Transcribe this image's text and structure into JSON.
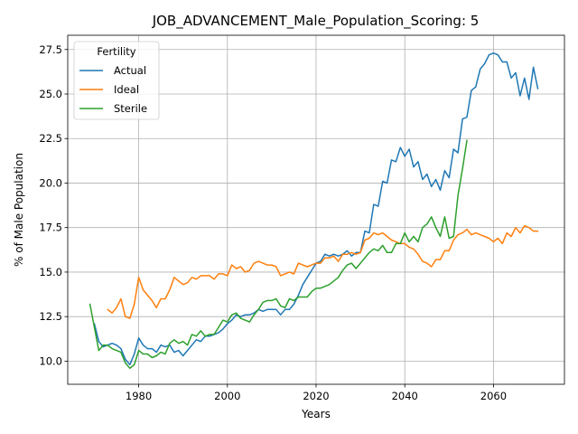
{
  "chart_data": {
    "type": "line",
    "title": "JOB_ADVANCEMENT_Male_Population_Scoring: 5",
    "xlabel": "Years",
    "ylabel": "% of Male Population",
    "xlim": [
      1964,
      2076
    ],
    "ylim": [
      8.7,
      28.3
    ],
    "x_ticks": [
      1980,
      2000,
      2020,
      2040,
      2060
    ],
    "y_ticks": [
      10.0,
      12.5,
      15.0,
      17.5,
      20.0,
      22.5,
      25.0,
      27.5
    ],
    "y_tick_labels": [
      "10.0",
      "12.5",
      "15.0",
      "17.5",
      "20.0",
      "22.5",
      "25.0",
      "27.5"
    ],
    "grid": true,
    "legend": {
      "title": "Fertility",
      "placement": "top-left"
    },
    "series": [
      {
        "name": "Actual",
        "color": "#1f77b4",
        "x": [
          1970,
          1971,
          1972,
          1973,
          1974,
          1975,
          1976,
          1977,
          1978,
          1979,
          1980,
          1981,
          1982,
          1983,
          1984,
          1985,
          1986,
          1987,
          1988,
          1989,
          1990,
          1991,
          1992,
          1993,
          1994,
          1995,
          1996,
          1997,
          1998,
          1999,
          2000,
          2001,
          2002,
          2003,
          2004,
          2005,
          2006,
          2007,
          2008,
          2009,
          2010,
          2011,
          2012,
          2013,
          2014,
          2015,
          2016,
          2017,
          2018,
          2019,
          2020,
          2021,
          2022,
          2023,
          2024,
          2025,
          2026,
          2027,
          2028,
          2029,
          2030,
          2031,
          2032,
          2033,
          2034,
          2035,
          2036,
          2037,
          2038,
          2039,
          2040,
          2041,
          2042,
          2043,
          2044,
          2045,
          2046,
          2047,
          2048,
          2049,
          2050,
          2051,
          2052,
          2053,
          2054,
          2055,
          2056,
          2057,
          2058,
          2059,
          2060,
          2061,
          2062,
          2063,
          2064,
          2065,
          2066,
          2067,
          2068,
          2069,
          2070
        ],
        "values": [
          12.1,
          11.1,
          10.8,
          10.9,
          11.0,
          10.9,
          10.7,
          10.1,
          9.8,
          10.4,
          11.3,
          10.9,
          10.7,
          10.7,
          10.5,
          10.9,
          10.8,
          10.9,
          10.5,
          10.6,
          10.3,
          10.6,
          10.9,
          11.2,
          11.1,
          11.4,
          11.4,
          11.5,
          11.6,
          11.8,
          12.1,
          12.3,
          12.6,
          12.5,
          12.6,
          12.6,
          12.7,
          12.9,
          12.8,
          12.9,
          12.9,
          12.9,
          12.6,
          12.9,
          12.9,
          13.2,
          13.7,
          14.3,
          14.7,
          15.1,
          15.5,
          15.6,
          16.0,
          15.9,
          16.0,
          15.9,
          16.0,
          16.2,
          15.9,
          16.1,
          16.1,
          17.3,
          17.2,
          18.8,
          18.7,
          20.1,
          20.0,
          21.3,
          21.2,
          22.0,
          21.5,
          21.9,
          20.9,
          21.2,
          20.2,
          20.5,
          19.8,
          20.2,
          19.6,
          20.7,
          20.3,
          21.9,
          21.7,
          23.6,
          23.7,
          25.2,
          25.4,
          26.4,
          26.7,
          27.2,
          27.3,
          27.2,
          26.8,
          26.8,
          25.9,
          26.2,
          24.9,
          25.9,
          24.7,
          26.5,
          25.3
        ]
      },
      {
        "name": "Ideal",
        "color": "#ff7f0e",
        "x": [
          1973,
          1974,
          1975,
          1976,
          1977,
          1978,
          1979,
          1980,
          1981,
          1982,
          1983,
          1984,
          1985,
          1986,
          1987,
          1988,
          1989,
          1990,
          1991,
          1992,
          1993,
          1994,
          1995,
          1996,
          1997,
          1998,
          1999,
          2000,
          2001,
          2002,
          2003,
          2004,
          2005,
          2006,
          2007,
          2008,
          2009,
          2010,
          2011,
          2012,
          2013,
          2014,
          2015,
          2016,
          2017,
          2018,
          2019,
          2020,
          2021,
          2022,
          2023,
          2024,
          2025,
          2026,
          2027,
          2028,
          2029,
          2030,
          2031,
          2032,
          2033,
          2034,
          2035,
          2036,
          2037,
          2038,
          2039,
          2040,
          2041,
          2042,
          2043,
          2044,
          2045,
          2046,
          2047,
          2048,
          2049,
          2050,
          2051,
          2052,
          2053,
          2054,
          2055,
          2056,
          2057,
          2058,
          2059,
          2060,
          2061,
          2062,
          2063,
          2064,
          2065,
          2066,
          2067,
          2068,
          2069,
          2070
        ],
        "values": [
          12.9,
          12.7,
          13.0,
          13.5,
          12.5,
          12.4,
          13.2,
          14.7,
          14.0,
          13.7,
          13.4,
          13.0,
          13.5,
          13.5,
          14.0,
          14.7,
          14.5,
          14.3,
          14.4,
          14.7,
          14.6,
          14.8,
          14.8,
          14.8,
          14.6,
          14.9,
          14.9,
          14.8,
          15.4,
          15.2,
          15.3,
          15.0,
          15.1,
          15.5,
          15.6,
          15.5,
          15.4,
          15.4,
          15.3,
          14.8,
          14.9,
          15.0,
          14.9,
          15.5,
          15.4,
          15.3,
          15.4,
          15.5,
          15.5,
          15.8,
          15.8,
          15.9,
          15.6,
          16.0,
          16.0,
          16.1,
          16.0,
          16.1,
          16.8,
          16.9,
          17.2,
          17.1,
          17.2,
          17.0,
          16.8,
          16.7,
          16.6,
          16.6,
          16.4,
          16.3,
          16.0,
          15.6,
          15.5,
          15.3,
          15.7,
          15.7,
          16.2,
          16.2,
          16.8,
          17.1,
          17.2,
          17.4,
          17.1,
          17.2,
          17.1,
          17.0,
          16.9,
          16.7,
          16.9,
          16.6,
          17.2,
          17.0,
          17.5,
          17.2,
          17.6,
          17.5,
          17.3,
          17.3
        ]
      },
      {
        "name": "Sterile",
        "color": "#2ca02c",
        "x": [
          1969,
          1970,
          1971,
          1972,
          1973,
          1974,
          1975,
          1976,
          1977,
          1978,
          1979,
          1980,
          1981,
          1982,
          1983,
          1984,
          1985,
          1986,
          1987,
          1988,
          1989,
          1990,
          1991,
          1992,
          1993,
          1994,
          1995,
          1996,
          1997,
          1998,
          1999,
          2000,
          2001,
          2002,
          2003,
          2004,
          2005,
          2006,
          2007,
          2008,
          2009,
          2010,
          2011,
          2012,
          2013,
          2014,
          2015,
          2016,
          2017,
          2018,
          2019,
          2020,
          2021,
          2022,
          2023,
          2024,
          2025,
          2026,
          2027,
          2028,
          2029,
          2030,
          2031,
          2032,
          2033,
          2034,
          2035,
          2036,
          2037,
          2038,
          2039,
          2040,
          2041,
          2042,
          2043,
          2044,
          2045,
          2046,
          2047,
          2048,
          2049,
          2050,
          2051,
          2052,
          2053,
          2054
        ],
        "values": [
          13.2,
          11.9,
          10.6,
          10.9,
          10.9,
          10.7,
          10.6,
          10.5,
          9.9,
          9.6,
          9.8,
          10.6,
          10.4,
          10.4,
          10.2,
          10.3,
          10.5,
          10.4,
          11.0,
          11.2,
          11.0,
          11.1,
          10.9,
          11.5,
          11.4,
          11.7,
          11.4,
          11.5,
          11.5,
          11.9,
          12.3,
          12.2,
          12.6,
          12.7,
          12.4,
          12.3,
          12.2,
          12.6,
          12.9,
          13.3,
          13.4,
          13.4,
          13.5,
          13.1,
          13.0,
          13.5,
          13.4,
          13.6,
          13.6,
          13.6,
          13.9,
          14.1,
          14.1,
          14.2,
          14.3,
          14.5,
          14.7,
          15.1,
          15.4,
          15.5,
          15.2,
          15.5,
          15.8,
          16.1,
          16.3,
          16.2,
          16.5,
          16.1,
          16.1,
          16.6,
          16.6,
          17.2,
          16.7,
          17.0,
          16.7,
          17.5,
          17.7,
          18.1,
          17.5,
          17.0,
          18.1,
          16.9,
          17.0,
          19.3,
          20.8,
          22.4
        ]
      }
    ]
  }
}
